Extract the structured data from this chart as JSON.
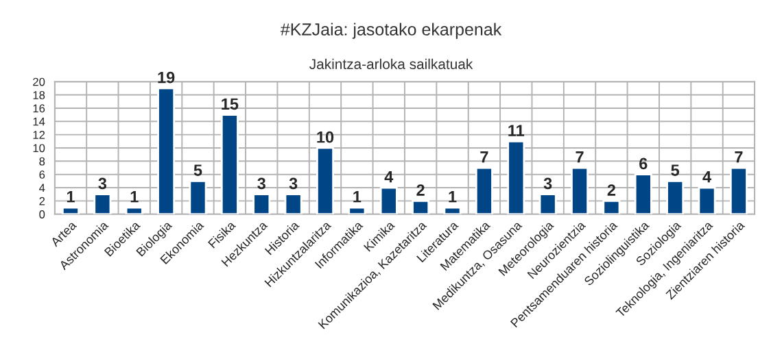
{
  "chart_data": {
    "type": "bar",
    "title": "#KZJaia: jasotako ekarpenak",
    "subtitle": "Jakintza-arloka sailkatuak",
    "categories": [
      "Artea",
      "Astronomia",
      "Bioetika",
      "Biologia",
      "Ekonomia",
      "Fisika",
      "Hezkuntza",
      "Historia",
      "Hizkuntzalaritza",
      "Informatika",
      "Kimika",
      "Komunikazioa, Kazetaritza",
      "Literatura",
      "Matematika",
      "Medikuntza, Osasuna",
      "Meteorologia",
      "Neurozientzia",
      "Pentsamenduaren historia",
      "Soziolinguistika",
      "Soziologia",
      "Teknologia, Ingeniaritza",
      "Zientziaren historia"
    ],
    "values": [
      1,
      3,
      1,
      19,
      5,
      15,
      3,
      3,
      10,
      1,
      4,
      2,
      1,
      7,
      11,
      3,
      7,
      2,
      6,
      5,
      4,
      7
    ],
    "color": "#004586",
    "ylim": [
      0,
      20
    ],
    "yticks": [
      0,
      2,
      4,
      6,
      8,
      10,
      12,
      14,
      16,
      18,
      20
    ],
    "grid": true,
    "data_labels": true
  }
}
